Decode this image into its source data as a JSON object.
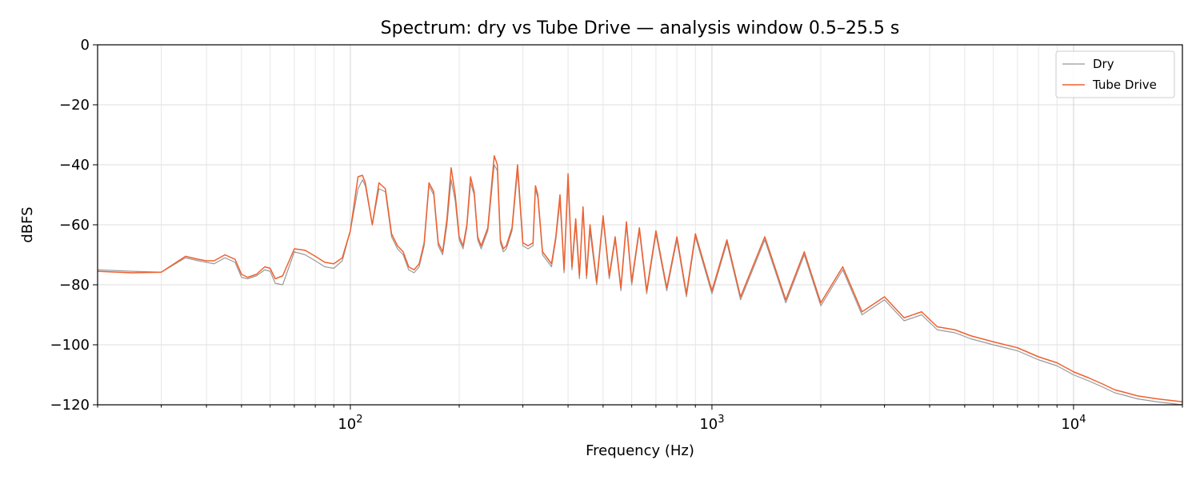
{
  "chart_data": {
    "type": "line",
    "title": "Spectrum: dry vs Tube Drive — analysis window 0.5–25.5 s",
    "xlabel": "Frequency (Hz)",
    "ylabel": "dBFS",
    "xscale": "log",
    "xlim": [
      20,
      20000
    ],
    "ylim": [
      -120,
      0
    ],
    "yticks": [
      0,
      -20,
      -40,
      -60,
      -80,
      -100,
      -120
    ],
    "ytick_labels": [
      "0",
      "−20",
      "−40",
      "−60",
      "−80",
      "−100",
      "−120"
    ],
    "xticks": [
      100,
      1000,
      10000
    ],
    "xtick_labels": [
      {
        "base": "10",
        "exp": "2"
      },
      {
        "base": "10",
        "exp": "3"
      },
      {
        "base": "10",
        "exp": "4"
      }
    ],
    "grid": true,
    "legend": "top-right",
    "series": [
      {
        "name": "Dry",
        "color": "#999999",
        "x": [
          20,
          25,
          30,
          35,
          38,
          40,
          42,
          45,
          48,
          50,
          52,
          55,
          58,
          60,
          62,
          65,
          70,
          75,
          80,
          85,
          90,
          95,
          100,
          105,
          108,
          110,
          115,
          120,
          125,
          130,
          135,
          140,
          145,
          150,
          155,
          160,
          165,
          170,
          175,
          180,
          185,
          190,
          195,
          200,
          205,
          210,
          215,
          220,
          225,
          230,
          240,
          250,
          255,
          260,
          265,
          270,
          280,
          290,
          300,
          310,
          320,
          325,
          330,
          340,
          350,
          360,
          370,
          380,
          390,
          400,
          410,
          420,
          430,
          440,
          450,
          460,
          480,
          500,
          520,
          540,
          560,
          580,
          600,
          630,
          660,
          700,
          750,
          800,
          850,
          900,
          1000,
          1100,
          1200,
          1400,
          1600,
          1800,
          2000,
          2300,
          2600,
          3000,
          3400,
          3800,
          4200,
          4700,
          5200,
          6000,
          7000,
          8000,
          9000,
          10000,
          11000,
          12000,
          13000,
          14000,
          15000,
          17000,
          20000
        ],
        "y": [
          -75,
          -75.5,
          -75.8,
          -71,
          -72,
          -72.5,
          -73,
          -71,
          -72.5,
          -77.5,
          -78,
          -77,
          -75,
          -75.5,
          -79.5,
          -80,
          -69,
          -70,
          -72,
          -74,
          -74.5,
          -72,
          -62,
          -48,
          -45,
          -47,
          -60,
          -48,
          -49,
          -64,
          -68,
          -70,
          -75,
          -76,
          -74,
          -67,
          -47,
          -50,
          -67,
          -70,
          -60,
          -45,
          -52,
          -65,
          -68,
          -61,
          -46,
          -50,
          -65,
          -68,
          -62,
          -40,
          -42,
          -66,
          -69,
          -68,
          -62,
          -42,
          -67,
          -68,
          -67,
          -48,
          -51,
          -70,
          -72,
          -74,
          -65,
          -52,
          -76,
          -45,
          -75,
          -60,
          -78,
          -55,
          -78,
          -62,
          -80,
          -58,
          -78,
          -65,
          -82,
          -60,
          -80,
          -62,
          -83,
          -63,
          -82,
          -65,
          -84,
          -64,
          -83,
          -66,
          -85,
          -65,
          -86,
          -70,
          -87,
          -75,
          -90,
          -85,
          -92,
          -90,
          -95,
          -96,
          -98,
          -100,
          -102,
          -105,
          -107,
          -110,
          -112,
          -114,
          -116,
          -117,
          -118,
          -119,
          -120
        ]
      },
      {
        "name": "Tube Drive",
        "color": "#f0602f",
        "x": [
          20,
          25,
          30,
          35,
          38,
          40,
          42,
          45,
          48,
          50,
          52,
          55,
          58,
          60,
          62,
          65,
          70,
          75,
          80,
          85,
          90,
          95,
          100,
          105,
          108,
          110,
          115,
          120,
          125,
          130,
          135,
          140,
          145,
          150,
          155,
          160,
          165,
          170,
          175,
          180,
          185,
          190,
          195,
          200,
          205,
          210,
          215,
          220,
          225,
          230,
          240,
          250,
          255,
          260,
          265,
          270,
          280,
          290,
          300,
          310,
          320,
          325,
          330,
          340,
          350,
          360,
          370,
          380,
          390,
          400,
          410,
          420,
          430,
          440,
          450,
          460,
          480,
          500,
          520,
          540,
          560,
          580,
          600,
          630,
          660,
          700,
          750,
          800,
          850,
          900,
          1000,
          1100,
          1200,
          1400,
          1600,
          1800,
          2000,
          2300,
          2600,
          3000,
          3400,
          3800,
          4200,
          4700,
          5200,
          6000,
          7000,
          8000,
          9000,
          10000,
          11000,
          12000,
          13000,
          14000,
          15000,
          17000,
          20000
        ],
        "y": [
          -75.5,
          -76,
          -75.8,
          -70.5,
          -71.5,
          -72,
          -72,
          -70,
          -71.5,
          -76.5,
          -77.5,
          -76.5,
          -74,
          -74.5,
          -78,
          -77,
          -68,
          -68.5,
          -70.5,
          -72.5,
          -73,
          -71,
          -62,
          -44,
          -43.5,
          -46,
          -60,
          -46,
          -48,
          -63,
          -67,
          -69,
          -74,
          -75,
          -73,
          -66,
          -46,
          -49,
          -66,
          -69,
          -58,
          -41,
          -50,
          -64,
          -67,
          -60,
          -44,
          -49,
          -64,
          -67,
          -61,
          -37,
          -40,
          -65,
          -68,
          -67,
          -61,
          -40,
          -66,
          -67,
          -66,
          -47,
          -50,
          -69,
          -71,
          -73,
          -64,
          -50,
          -75,
          -43,
          -74,
          -58,
          -77,
          -54,
          -77,
          -60,
          -79,
          -57,
          -77,
          -64,
          -81,
          -59,
          -79,
          -61,
          -82,
          -62,
          -81,
          -64,
          -83,
          -63,
          -82,
          -65,
          -84,
          -64,
          -85,
          -69,
          -86,
          -74,
          -89,
          -84,
          -91,
          -89,
          -94,
          -95,
          -97,
          -99,
          -101,
          -104,
          -106,
          -109,
          -111,
          -113,
          -115,
          -116,
          -117,
          -118,
          -119
        ]
      }
    ]
  }
}
